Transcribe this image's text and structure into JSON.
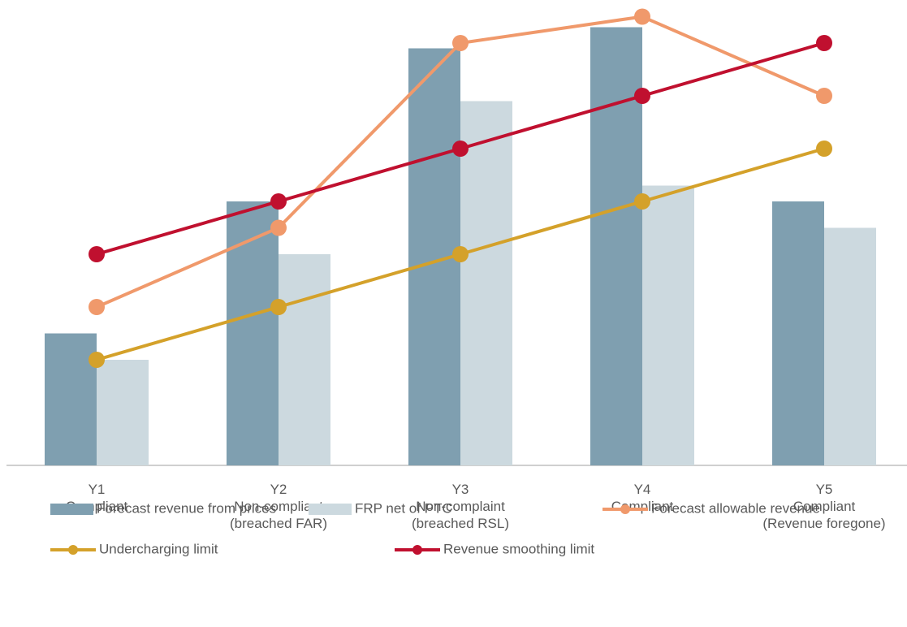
{
  "chart_data": {
    "type": "bar",
    "categories": [
      [
        "Y1",
        "Compliant"
      ],
      [
        "Y2",
        "Non-compliant",
        "(breached FAR)"
      ],
      [
        "Y3",
        "Non-complaint",
        "(breached RSL)"
      ],
      [
        "Y4",
        "Compliant"
      ],
      [
        "Y5",
        "Compliant",
        "(Revenue foregone)"
      ]
    ],
    "series": [
      {
        "name": "Forecast revenue from prices",
        "type": "bar",
        "color": "#7f9fb0",
        "values": [
          2.5,
          5,
          7.9,
          8.3,
          5
        ]
      },
      {
        "name": "FRP net of PTC",
        "type": "bar",
        "color": "#ccd9df",
        "values": [
          2,
          4,
          6.9,
          5.3,
          4.5
        ]
      },
      {
        "name": "Forecast allowable revenue",
        "type": "line",
        "color": "#f0996b",
        "values": [
          3,
          4.5,
          8,
          8.5,
          7
        ]
      },
      {
        "name": "Undercharging limit",
        "type": "line",
        "color": "#d4a12a",
        "values": [
          2,
          3,
          4,
          5,
          6
        ]
      },
      {
        "name": "Revenue smoothing limit",
        "type": "line",
        "color": "#c0102f",
        "values": [
          4,
          5,
          6,
          7,
          8
        ]
      }
    ],
    "ylim": [
      0,
      8.8
    ]
  }
}
